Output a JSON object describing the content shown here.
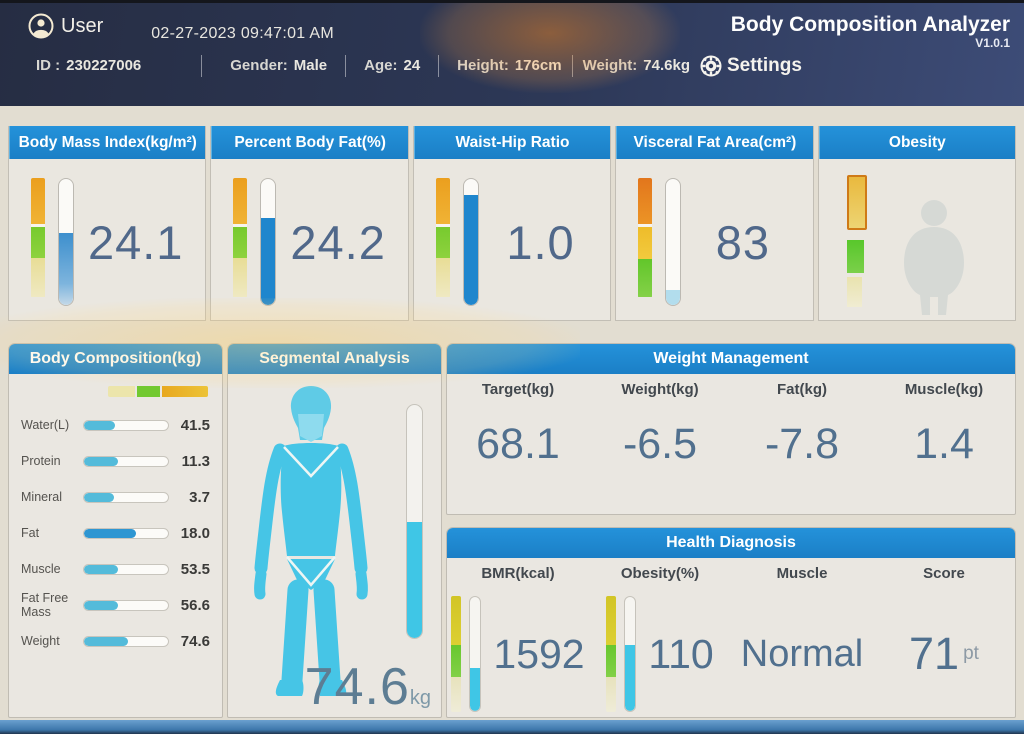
{
  "header": {
    "user_label": "User",
    "datetime": "02-27-2023 09:47:01 AM",
    "app_title": "Body Composition Analyzer",
    "version": "V1.0.1",
    "settings_label": "Settings",
    "patient": {
      "id_label": "ID :",
      "id": "230227006",
      "gender_label": "Gender:",
      "gender": "Male",
      "age_label": "Age:",
      "age": "24",
      "height_label": "Height:",
      "height": "176cm",
      "weight_label": "Weight:",
      "weight": "74.6kg"
    }
  },
  "icons": {
    "user": "user-icon",
    "settings": "gear-icon",
    "obesity_figure": "obese-person-icon",
    "segmental_figure": "human-body-silhouette"
  },
  "metrics": [
    {
      "title": "Body Mass Index(kg/m²)",
      "value": "24.1",
      "tube_fill_pct": 57
    },
    {
      "title": "Percent Body Fat(%)",
      "value": "24.2",
      "tube_fill_pct": 69
    },
    {
      "title": "Waist-Hip Ratio",
      "value": "1.0",
      "tube_fill_pct": 87
    },
    {
      "title": "Visceral Fat Area(cm²)",
      "value": "83",
      "tube_fill_pct": 12
    },
    {
      "title": "Obesity",
      "value": ""
    }
  ],
  "body_composition": {
    "title": "Body Composition(kg)",
    "rows": [
      {
        "label": "Water(L)",
        "value": "41.5",
        "fill_pct": 37
      },
      {
        "label": "Protein",
        "value": "11.3",
        "fill_pct": 41
      },
      {
        "label": "Mineral",
        "value": "3.7",
        "fill_pct": 36
      },
      {
        "label": "Fat",
        "value": "18.0",
        "fill_pct": 62
      },
      {
        "label": "Muscle",
        "value": "53.5",
        "fill_pct": 40
      },
      {
        "label": "Fat Free Mass",
        "value": "56.6",
        "fill_pct": 40
      },
      {
        "label": "Weight",
        "value": "74.6",
        "fill_pct": 52
      }
    ]
  },
  "segmental": {
    "title": "Segmental Analysis",
    "weight_value": "74.6",
    "weight_unit": "kg",
    "tube_fill_pct": 50
  },
  "weight_management": {
    "title": "Weight Management",
    "columns": [
      {
        "label": "Target(kg)",
        "value": "68.1"
      },
      {
        "label": "Weight(kg)",
        "value": "-6.5"
      },
      {
        "label": "Fat(kg)",
        "value": "-7.8"
      },
      {
        "label": "Muscle(kg)",
        "value": "1.4"
      }
    ]
  },
  "health_diagnosis": {
    "title": "Health Diagnosis",
    "columns": [
      {
        "label": "BMR(kcal)",
        "value": "1592",
        "tube_fill_pct": 38
      },
      {
        "label": "Obesity(%)",
        "value": "110",
        "tube_fill_pct": 58
      },
      {
        "label": "Muscle",
        "value": "Normal"
      },
      {
        "label": "Score",
        "value": "71",
        "unit": "pt"
      }
    ]
  },
  "colors": {
    "header_navy": "#2d3857",
    "panel_header_blue": "#1f8ad2",
    "value_text": "#51708e",
    "bar_fill_light_blue": "#54bbda",
    "bar_fill_dark_blue": "#2e96d2",
    "tube_fill_blue": "#1f86cd",
    "tube_fill_cyan": "#3fc6e6",
    "scale_orange": "#eb9f1e",
    "scale_green": "#77ca2e",
    "scale_pale_yellow": "#e8dd96",
    "body_silhouette_cyan": "#46c5e6",
    "content_bg": "#e2ddd1"
  }
}
